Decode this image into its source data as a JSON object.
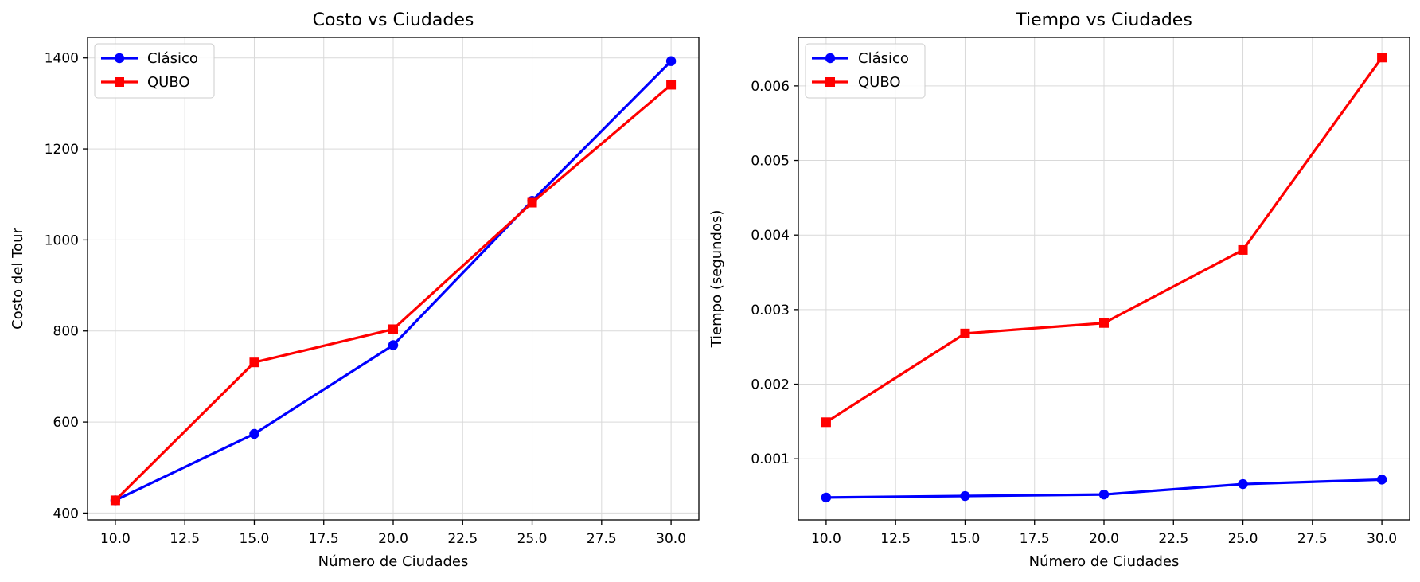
{
  "chart_data": [
    {
      "type": "line",
      "title": "Costo vs Ciudades",
      "xlabel": "Número de Ciudades",
      "ylabel": "Costo del Tour",
      "x": [
        10,
        15,
        20,
        25,
        30
      ],
      "xlim": [
        9.0,
        31.0
      ],
      "ylim": [
        385,
        1445
      ],
      "xticks": [
        10.0,
        12.5,
        15.0,
        17.5,
        20.0,
        22.5,
        25.0,
        27.5,
        30.0
      ],
      "xtick_labels": [
        "10.0",
        "12.5",
        "15.0",
        "17.5",
        "20.0",
        "22.5",
        "25.0",
        "27.5",
        "30.0"
      ],
      "yticks": [
        400,
        600,
        800,
        1000,
        1200,
        1400
      ],
      "ytick_labels": [
        "400",
        "600",
        "800",
        "1000",
        "1200",
        "1400"
      ],
      "grid": true,
      "legend_position": "top-left",
      "series": [
        {
          "name": "Clásico",
          "color": "#0000ff",
          "marker": "circle",
          "values": [
            428,
            574,
            769,
            1086,
            1393
          ]
        },
        {
          "name": "QUBO",
          "color": "#ff0000",
          "marker": "square",
          "values": [
            428,
            731,
            804,
            1082,
            1341
          ]
        }
      ]
    },
    {
      "type": "line",
      "title": "Tiempo vs Ciudades",
      "xlabel": "Número de Ciudades",
      "ylabel": "Tiempo (segundos)",
      "x": [
        10,
        15,
        20,
        25,
        30
      ],
      "xlim": [
        9.0,
        31.0
      ],
      "ylim": [
        0.00018,
        0.00665
      ],
      "xticks": [
        10.0,
        12.5,
        15.0,
        17.5,
        20.0,
        22.5,
        25.0,
        27.5,
        30.0
      ],
      "xtick_labels": [
        "10.0",
        "12.5",
        "15.0",
        "17.5",
        "20.0",
        "22.5",
        "25.0",
        "27.5",
        "30.0"
      ],
      "yticks": [
        0.001,
        0.002,
        0.003,
        0.004,
        0.005,
        0.006
      ],
      "ytick_labels": [
        "0.001",
        "0.002",
        "0.003",
        "0.004",
        "0.005",
        "0.006"
      ],
      "grid": true,
      "legend_position": "top-left",
      "series": [
        {
          "name": "Clásico",
          "color": "#0000ff",
          "marker": "circle",
          "values": [
            0.00048,
            0.0005,
            0.00052,
            0.00066,
            0.00072
          ]
        },
        {
          "name": "QUBO",
          "color": "#ff0000",
          "marker": "square",
          "values": [
            0.00149,
            0.00268,
            0.00282,
            0.0038,
            0.00638
          ]
        }
      ]
    }
  ]
}
